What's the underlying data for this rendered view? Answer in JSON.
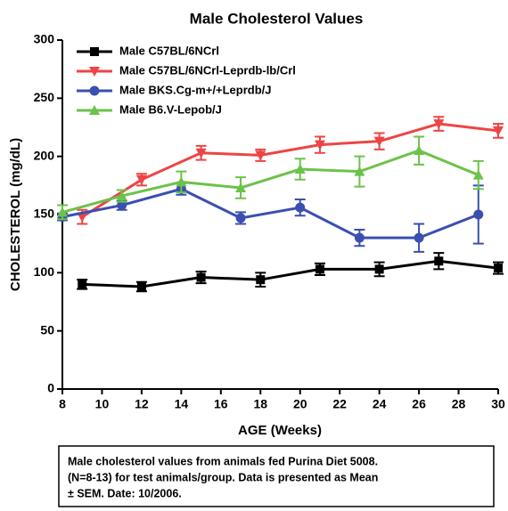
{
  "chart_data": {
    "type": "line",
    "title": "Male Cholesterol Values",
    "xlabel": "AGE (Weeks)",
    "ylabel": "CHOLESTEROL (mg/dL)",
    "xlim": [
      8,
      30
    ],
    "xticks": [
      8,
      10,
      12,
      14,
      16,
      18,
      20,
      22,
      24,
      26,
      28,
      30
    ],
    "ylim": [
      0,
      300
    ],
    "yticks": [
      0,
      50,
      100,
      150,
      200,
      250,
      300
    ],
    "series": [
      {
        "name": "Male C57BL/6NCrl",
        "color": "#000000",
        "marker": "square",
        "x": [
          9,
          12,
          15,
          18,
          21,
          24,
          27,
          30
        ],
        "values": [
          90,
          88,
          96,
          94,
          103,
          103,
          110,
          104
        ],
        "errors": [
          4,
          4,
          5,
          6,
          5,
          6,
          7,
          5
        ]
      },
      {
        "name": "Male C57BL/6NCrl-Leprdb-lb/Crl",
        "color": "#ee4444",
        "marker": "triangle-down",
        "x": [
          9,
          12,
          15,
          18,
          21,
          24,
          27,
          30
        ],
        "values": [
          148,
          180,
          203,
          201,
          210,
          213,
          228,
          222
        ],
        "errors": [
          6,
          5,
          6,
          5,
          7,
          7,
          6,
          6
        ]
      },
      {
        "name": "Male BKS.Cg-m+/+Leprdb/J",
        "color": "#3a4fb0",
        "marker": "circle",
        "x": [
          8,
          11,
          14,
          17,
          20,
          23,
          26,
          29
        ],
        "values": [
          148,
          158,
          172,
          147,
          156,
          130,
          130,
          150
        ],
        "errors": [
          3,
          4,
          5,
          5,
          7,
          7,
          12,
          25
        ]
      },
      {
        "name": "Male B6.V-Lepob/J",
        "color": "#6cc24a",
        "marker": "triangle-up",
        "x": [
          8,
          11,
          14,
          17,
          20,
          23,
          26,
          29
        ],
        "values": [
          152,
          166,
          178,
          173,
          189,
          187,
          205,
          184
        ],
        "errors": [
          6,
          5,
          9,
          9,
          9,
          13,
          12,
          12
        ]
      }
    ],
    "note": [
      "Male cholesterol values from animals fed Purina Diet 5008.",
      "(N=8-13) for test animals/group.  Data is presented as Mean",
      "± SEM.  Date: 10/2006."
    ]
  }
}
